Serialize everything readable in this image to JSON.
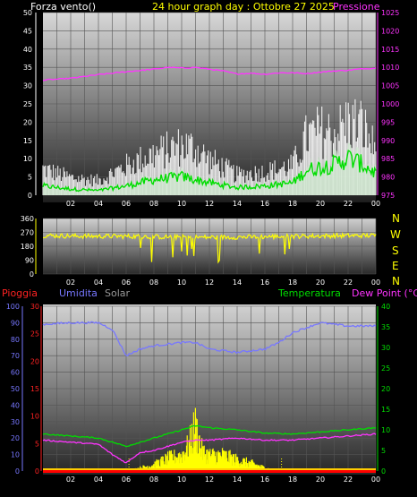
{
  "header": {
    "left": "Forza vento()",
    "center": "24 hour graph day : Ottobre 27 2025",
    "right": "Pressione"
  },
  "compass": [
    "N",
    "W",
    "S",
    "E",
    "N"
  ],
  "lower_labels": {
    "rain": "Pioggia",
    "humidity": "Umidita",
    "solar": "Solar",
    "temperature": "Temperatura",
    "dewpoint": "Dew Point (°C)"
  },
  "colors": {
    "wind_max": "#ffffff",
    "wind_avg": "#00dd00",
    "wind_fill": "#cfe8cf",
    "pressure": "#ff33ff",
    "direction": "#ffff00",
    "rain": "#ff0000",
    "humidity": "#7777ff",
    "solar": "#ffff00",
    "temperature": "#00dd00",
    "dewpoint": "#ff33ff",
    "header_left": "#ffffff",
    "header_center": "#ffff00"
  },
  "chart_data": [
    {
      "type": "line",
      "name": "wind-pressure",
      "x_ticks": [
        "02",
        "04",
        "06",
        "08",
        "10",
        "12",
        "14",
        "16",
        "18",
        "20",
        "22",
        "00"
      ],
      "y_left_ticks": [
        "50",
        "45",
        "40",
        "35",
        "30",
        "25",
        "20",
        "15",
        "10",
        "5",
        "0"
      ],
      "y_right_ticks": [
        "1025",
        "1020",
        "1015",
        "1010",
        "1005",
        "1000",
        "995",
        "990",
        "985",
        "980",
        "975"
      ],
      "ylim_left": [
        0,
        50
      ],
      "ylim_right": [
        975,
        1025
      ],
      "pressure": {
        "x": [
          0,
          2,
          4,
          6,
          8,
          9,
          10,
          11,
          12,
          13,
          14,
          15,
          16,
          17,
          18,
          19,
          20,
          21,
          22,
          23,
          24
        ],
        "y": [
          1006.5,
          1007,
          1008,
          1008.8,
          1009.5,
          1010,
          1009.8,
          1010,
          1009.5,
          1009,
          1008.2,
          1008.4,
          1008.1,
          1008.5,
          1008.5,
          1008.3,
          1008.7,
          1009,
          1009.2,
          1009.6,
          1009.8
        ]
      },
      "wind_avg": {
        "x": [
          0,
          2,
          4,
          6,
          8,
          10,
          12,
          14,
          16,
          18,
          19,
          20,
          21,
          22,
          23,
          24
        ],
        "y": [
          3,
          2,
          1.5,
          3,
          5,
          6,
          4,
          2.5,
          3,
          4,
          8,
          9,
          10,
          12,
          10,
          7
        ]
      },
      "wind_gust": {
        "x": [
          0,
          2,
          4,
          6,
          8,
          10,
          11,
          12,
          14,
          16,
          18,
          19,
          20,
          21,
          22,
          23,
          24
        ],
        "y": [
          9,
          6,
          5,
          10,
          14,
          17,
          16,
          12,
          7,
          8,
          10,
          20,
          22,
          21,
          25,
          24,
          15
        ]
      }
    },
    {
      "type": "line",
      "name": "wind-direction",
      "x_ticks": [
        "02",
        "04",
        "06",
        "08",
        "10",
        "12",
        "14",
        "16",
        "18",
        "20",
        "22",
        "00"
      ],
      "y_ticks": [
        "360",
        "270",
        "180",
        "90",
        "0"
      ],
      "ylim": [
        0,
        360
      ],
      "direction": {
        "x": [
          0,
          3,
          6,
          9,
          12,
          15,
          18,
          21,
          24
        ],
        "y": [
          250,
          245,
          245,
          240,
          238,
          240,
          245,
          248,
          250
        ]
      }
    },
    {
      "type": "line",
      "name": "rain-humidity-solar-temp",
      "x_ticks": [
        "02",
        "04",
        "06",
        "08",
        "10",
        "12",
        "14",
        "16",
        "18",
        "20",
        "22",
        "00"
      ],
      "y_rain_ticks": [
        "30",
        "25",
        "20",
        "15",
        "10",
        "5",
        "0"
      ],
      "y_humidity_ticks": [
        "100",
        "90",
        "80",
        "70",
        "60",
        "50",
        "40",
        "30",
        "20",
        "10",
        "0"
      ],
      "y_temp_ticks": [
        "40",
        "35",
        "30",
        "25",
        "20",
        "15",
        "10",
        "5",
        "0"
      ],
      "ylim_humidity": [
        0,
        100
      ],
      "ylim_temp": [
        0,
        40
      ],
      "humidity": {
        "x": [
          0,
          2,
          4,
          5,
          6,
          7,
          8,
          10,
          11,
          12,
          13,
          14,
          15,
          16,
          17,
          18,
          20,
          22,
          24
        ],
        "y": [
          89,
          90,
          90,
          86,
          70,
          74,
          76,
          78,
          78,
          74,
          73,
          72,
          73,
          74,
          78,
          84,
          90,
          88,
          88
        ]
      },
      "temperature": {
        "x": [
          0,
          2,
          4,
          6,
          8,
          10,
          11,
          12,
          14,
          16,
          18,
          20,
          22,
          24
        ],
        "y": [
          9,
          8.5,
          8,
          6,
          8,
          10,
          11,
          10.5,
          10,
          9.2,
          9,
          9.5,
          10,
          10.5
        ]
      },
      "dewpoint": {
        "x": [
          0,
          2,
          4,
          5,
          6,
          7,
          8,
          10,
          11,
          12,
          14,
          16,
          18,
          20,
          22,
          24
        ],
        "y": [
          7.5,
          7,
          6.5,
          4,
          2,
          4.5,
          5,
          7,
          7.5,
          7.5,
          8,
          7.5,
          7.5,
          8,
          8.5,
          9
        ]
      },
      "solar": {
        "x": [
          6,
          7,
          8,
          9,
          10,
          10.5,
          11,
          11.5,
          12,
          13,
          14,
          15,
          16,
          17
        ],
        "y": [
          0,
          1,
          2,
          4,
          5,
          8,
          14,
          6,
          5,
          5,
          3.5,
          2.5,
          1,
          0
        ]
      },
      "rain": {
        "x": [
          0,
          24
        ],
        "y": [
          0,
          0
        ]
      }
    }
  ]
}
